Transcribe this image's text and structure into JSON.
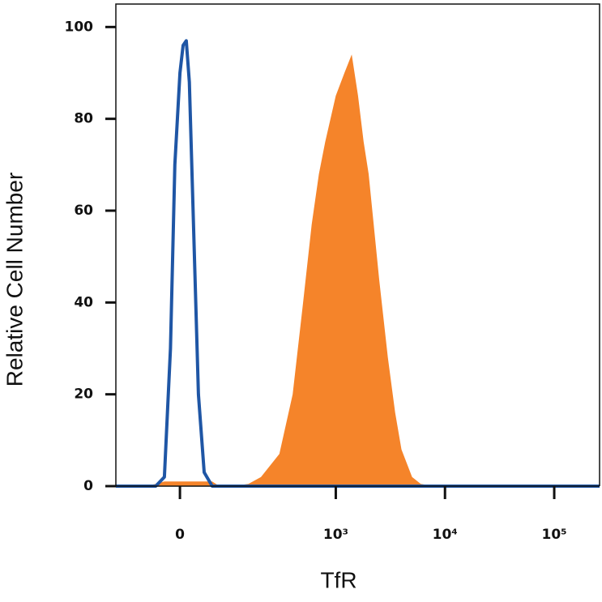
{
  "chart_data": {
    "type": "line",
    "xlabel": "TfR",
    "ylabel": "Relative Cell Number",
    "xscale": "biexponential",
    "xlim": [
      -135,
      260000
    ],
    "xticks": [
      0,
      {
        "value": 1000,
        "label": "10³"
      },
      {
        "value": 10000,
        "label": "10⁴"
      },
      {
        "value": 100000,
        "label": "10⁵"
      }
    ],
    "ylim": [
      0,
      105
    ],
    "yticks": [
      0,
      20,
      40,
      60,
      80,
      100
    ],
    "x": [
      -135,
      -60,
      -40,
      -25,
      -15,
      -8,
      0,
      5,
      10,
      15,
      20,
      30,
      40,
      55,
      70,
      100,
      150,
      200,
      300,
      400,
      500,
      600,
      700,
      800,
      1000,
      1200,
      1400,
      1600,
      1800,
      2000,
      2500,
      3000,
      3500,
      4000,
      5000,
      6000,
      8000,
      20000,
      100000,
      260000
    ],
    "series": [
      {
        "color": "#f5842a",
        "fill": true,
        "values": [
          0,
          0,
          0.5,
          1,
          1,
          1,
          1,
          1,
          1,
          1,
          1,
          1,
          1,
          1,
          0,
          0,
          0.5,
          2,
          7,
          20,
          40,
          57,
          68,
          75,
          85,
          90,
          94,
          85,
          75,
          68,
          45,
          28,
          16,
          8,
          2,
          0.5,
          0,
          0,
          0,
          0
        ]
      },
      {
        "color": "#1f56a5",
        "fill": false,
        "values": [
          0,
          0,
          0,
          2,
          30,
          70,
          90,
          96,
          97,
          88,
          65,
          20,
          3,
          0,
          0,
          0,
          0,
          0,
          0,
          0,
          0,
          0,
          0,
          0,
          0,
          0,
          0,
          0,
          0,
          0,
          0,
          0,
          0,
          0,
          0,
          0,
          0,
          0,
          0,
          0
        ]
      }
    ]
  }
}
